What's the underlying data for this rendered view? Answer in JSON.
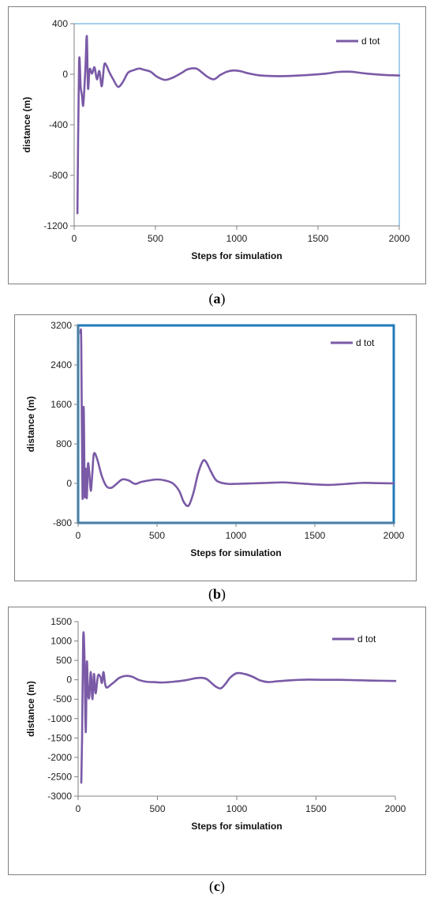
{
  "captions": [
    "a",
    "b",
    "c"
  ],
  "chart_data": [
    {
      "id": "a",
      "type": "line",
      "xlabel": "Steps for simulation",
      "ylabel": "distance  (m)",
      "xlim": [
        0,
        2000
      ],
      "ylim": [
        -1200,
        400
      ],
      "xticks": [
        0,
        500,
        1000,
        1500,
        2000
      ],
      "yticks": [
        400,
        0,
        -400,
        -800,
        -1200
      ],
      "legend": "top-right",
      "plot_border_color": "#4a9fd8",
      "series": [
        {
          "name": "d tot",
          "color": "#7a5aa6",
          "x": [
            20,
            30,
            40,
            48,
            55,
            62,
            70,
            78,
            85,
            95,
            110,
            125,
            140,
            155,
            170,
            185,
            200,
            215,
            240,
            270,
            300,
            330,
            360,
            400,
            430,
            470,
            510,
            560,
            610,
            660,
            700,
            750,
            790,
            820,
            860,
            900,
            940,
            980,
            1020,
            1080,
            1150,
            1250,
            1350,
            1450,
            1550,
            1620,
            1700,
            1800,
            1900,
            2000
          ],
          "y": [
            -1100,
            85,
            -100,
            -170,
            -250,
            -130,
            70,
            300,
            -110,
            40,
            5,
            55,
            -40,
            25,
            -95,
            75,
            65,
            20,
            -40,
            -100,
            -60,
            10,
            30,
            45,
            35,
            20,
            -20,
            -45,
            -25,
            10,
            40,
            45,
            10,
            -20,
            -40,
            -5,
            20,
            30,
            25,
            5,
            -10,
            -15,
            -12,
            -5,
            5,
            18,
            20,
            5,
            -5,
            -10
          ]
        }
      ]
    },
    {
      "id": "b",
      "type": "line",
      "xlabel": "Steps for simulation",
      "ylabel": "distance  (m)",
      "xlim": [
        0,
        2000
      ],
      "ylim": [
        -800,
        3200
      ],
      "xticks": [
        0,
        500,
        1000,
        1500,
        2000
      ],
      "yticks": [
        3200,
        2400,
        1600,
        800,
        0,
        -800
      ],
      "legend": "top-right",
      "plot_border_color": "#1f7ab8",
      "series": [
        {
          "name": "d tot",
          "color": "#7a5aa6",
          "x": [
            15,
            20,
            28,
            35,
            42,
            48,
            55,
            62,
            70,
            80,
            90,
            100,
            120,
            150,
            180,
            210,
            240,
            280,
            320,
            360,
            400,
            450,
            500,
            550,
            600,
            640,
            670,
            700,
            730,
            760,
            790,
            810,
            840,
            870,
            900,
            950,
            1000,
            1100,
            1200,
            1300,
            1400,
            1500,
            1600,
            1700,
            1800,
            1900,
            2000
          ],
          "y": [
            3050,
            2800,
            -300,
            1550,
            -250,
            300,
            -300,
            380,
            250,
            -150,
            200,
            600,
            500,
            150,
            -60,
            -90,
            -20,
            80,
            60,
            -10,
            30,
            60,
            80,
            60,
            0,
            -150,
            -380,
            -450,
            -200,
            200,
            450,
            440,
            250,
            80,
            20,
            -10,
            -10,
            0,
            10,
            20,
            0,
            -20,
            -30,
            -10,
            10,
            5,
            0
          ]
        }
      ]
    },
    {
      "id": "c",
      "type": "line",
      "xlabel": "Steps for simulation",
      "ylabel": "distance  (m)",
      "xlim": [
        0,
        2000
      ],
      "ylim": [
        -3000,
        1500
      ],
      "xticks": [
        0,
        500,
        1000,
        1500,
        2000
      ],
      "yticks": [
        1500,
        1000,
        500,
        0,
        -500,
        -1000,
        -1500,
        -2000,
        -2500,
        -3000
      ],
      "legend": "top-right",
      "plot_border_color": "#ffffff",
      "series": [
        {
          "name": "d tot",
          "color": "#7a5aa6",
          "x": [
            20,
            25,
            32,
            40,
            48,
            55,
            62,
            70,
            80,
            90,
            100,
            110,
            125,
            140,
            150,
            160,
            170,
            180,
            200,
            230,
            260,
            300,
            340,
            380,
            430,
            480,
            530,
            600,
            680,
            740,
            780,
            810,
            840,
            870,
            900,
            930,
            960,
            1000,
            1050,
            1100,
            1150,
            1200,
            1250,
            1350,
            1450,
            1550,
            1650,
            1750,
            1850,
            2000
          ],
          "y": [
            -2650,
            -1500,
            1100,
            600,
            -1350,
            450,
            -300,
            -450,
            200,
            -500,
            150,
            -350,
            100,
            80,
            -80,
            200,
            -100,
            -200,
            -150,
            -50,
            50,
            100,
            80,
            0,
            -50,
            -60,
            -70,
            -50,
            -10,
            40,
            50,
            20,
            -80,
            -180,
            -220,
            -100,
            60,
            170,
            150,
            80,
            -20,
            -60,
            -40,
            -10,
            5,
            0,
            0,
            -10,
            -20,
            -30
          ]
        }
      ]
    }
  ]
}
